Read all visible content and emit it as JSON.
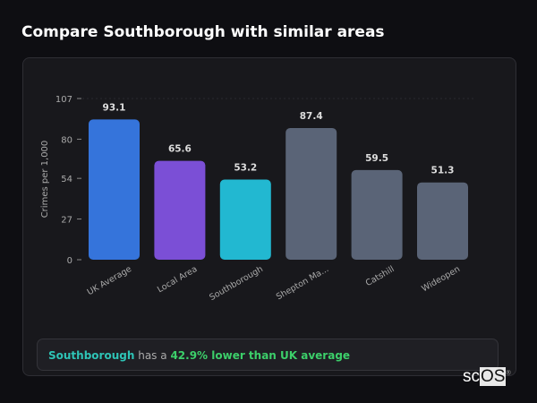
{
  "title": "Compare Southborough with similar areas",
  "chart_data": {
    "type": "bar",
    "categories": [
      "UK Average",
      "Local Area",
      "Southborough",
      "Shepton Ma...",
      "Catshill",
      "Wideopen"
    ],
    "values": [
      93.1,
      65.6,
      53.2,
      87.4,
      59.5,
      51.3
    ],
    "colors": [
      "#3574db",
      "#7b4fd6",
      "#22b8d1",
      "#5a6477",
      "#5a6477",
      "#5a6477"
    ],
    "ylabel": "Crimes per 1,000",
    "yticks": [
      0,
      27,
      54,
      80,
      107
    ],
    "ylim": [
      0,
      107
    ],
    "grid": false
  },
  "banner": {
    "area": "Southborough",
    "middle": "has a",
    "highlight": "42.9% lower than UK average"
  },
  "logo": {
    "text_a": "sc",
    "text_b": "OS",
    "mark": "®"
  }
}
